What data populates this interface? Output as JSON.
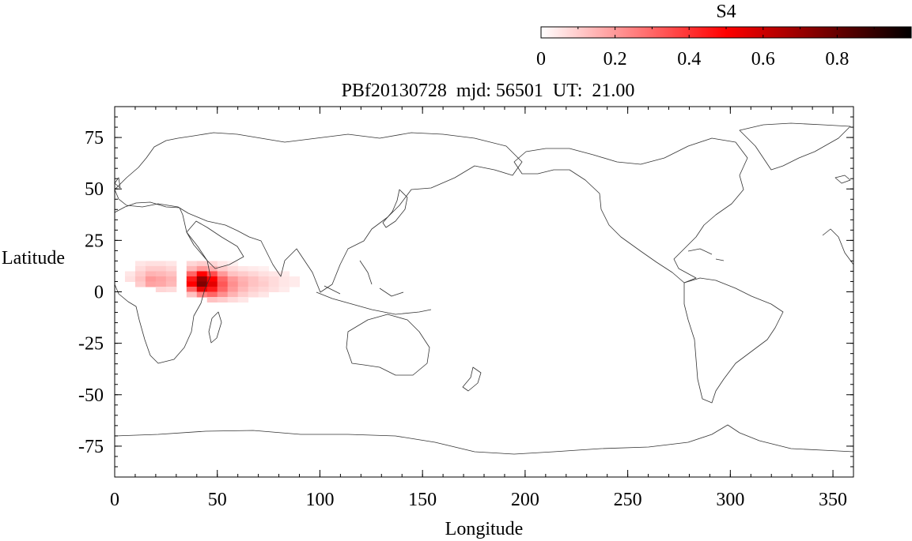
{
  "chart_data": {
    "type": "heatmap",
    "title": "PBf20130728  mjd: 56501  UT:  21.00",
    "xlabel": "Longitude",
    "ylabel": "Latitude",
    "xlim": [
      0,
      360
    ],
    "ylim": [
      -90,
      90
    ],
    "x_ticks": [
      "0",
      "50",
      "100",
      "150",
      "200",
      "250",
      "300",
      "350"
    ],
    "y_ticks": [
      "75",
      "50",
      "25",
      "0",
      "-25",
      "-50",
      "-75"
    ],
    "colorbar": {
      "label": "S4",
      "range": [
        0,
        1
      ],
      "ticks": [
        "0",
        "0.2",
        "0.4",
        "0.6",
        "0.8"
      ],
      "colors": [
        "#ffffff",
        "#ff0000",
        "#000000"
      ]
    },
    "cell_size_deg": {
      "lon": 5,
      "lat": 2.5
    },
    "cells": [
      {
        "lon": 10,
        "lat": 12.5,
        "s4": 0.05
      },
      {
        "lon": 15,
        "lat": 12.5,
        "s4": 0.06
      },
      {
        "lon": 20,
        "lat": 12.5,
        "s4": 0.06
      },
      {
        "lon": 25,
        "lat": 12.5,
        "s4": 0.05
      },
      {
        "lon": 35,
        "lat": 12.5,
        "s4": 0.08
      },
      {
        "lon": 40,
        "lat": 12.5,
        "s4": 0.1
      },
      {
        "lon": 45,
        "lat": 12.5,
        "s4": 0.08
      },
      {
        "lon": 50,
        "lat": 12.5,
        "s4": 0.05
      },
      {
        "lon": 55,
        "lat": 12.5,
        "s4": 0.03
      },
      {
        "lon": 10,
        "lat": 10,
        "s4": 0.07
      },
      {
        "lon": 15,
        "lat": 10,
        "s4": 0.1
      },
      {
        "lon": 20,
        "lat": 10,
        "s4": 0.1
      },
      {
        "lon": 25,
        "lat": 10,
        "s4": 0.08
      },
      {
        "lon": 35,
        "lat": 10,
        "s4": 0.14
      },
      {
        "lon": 40,
        "lat": 10,
        "s4": 0.2
      },
      {
        "lon": 45,
        "lat": 10,
        "s4": 0.16
      },
      {
        "lon": 50,
        "lat": 10,
        "s4": 0.1
      },
      {
        "lon": 55,
        "lat": 10,
        "s4": 0.07
      },
      {
        "lon": 60,
        "lat": 10,
        "s4": 0.05
      },
      {
        "lon": 65,
        "lat": 10,
        "s4": 0.04
      },
      {
        "lon": 70,
        "lat": 10,
        "s4": 0.03
      },
      {
        "lon": 5,
        "lat": 7.5,
        "s4": 0.05
      },
      {
        "lon": 10,
        "lat": 7.5,
        "s4": 0.1
      },
      {
        "lon": 15,
        "lat": 7.5,
        "s4": 0.15
      },
      {
        "lon": 20,
        "lat": 7.5,
        "s4": 0.14
      },
      {
        "lon": 25,
        "lat": 7.5,
        "s4": 0.12
      },
      {
        "lon": 35,
        "lat": 7.5,
        "s4": 0.3
      },
      {
        "lon": 40,
        "lat": 7.5,
        "s4": 0.5
      },
      {
        "lon": 45,
        "lat": 7.5,
        "s4": 0.35
      },
      {
        "lon": 50,
        "lat": 7.5,
        "s4": 0.2
      },
      {
        "lon": 55,
        "lat": 7.5,
        "s4": 0.12
      },
      {
        "lon": 60,
        "lat": 7.5,
        "s4": 0.1
      },
      {
        "lon": 65,
        "lat": 7.5,
        "s4": 0.08
      },
      {
        "lon": 70,
        "lat": 7.5,
        "s4": 0.06
      },
      {
        "lon": 75,
        "lat": 7.5,
        "s4": 0.05
      },
      {
        "lon": 80,
        "lat": 7.5,
        "s4": 0.04
      },
      {
        "lon": 5,
        "lat": 5,
        "s4": 0.06
      },
      {
        "lon": 10,
        "lat": 5,
        "s4": 0.12
      },
      {
        "lon": 15,
        "lat": 5,
        "s4": 0.2
      },
      {
        "lon": 20,
        "lat": 5,
        "s4": 0.18
      },
      {
        "lon": 25,
        "lat": 5,
        "s4": 0.15
      },
      {
        "lon": 35,
        "lat": 5,
        "s4": 0.45
      },
      {
        "lon": 40,
        "lat": 5,
        "s4": 0.7
      },
      {
        "lon": 45,
        "lat": 5,
        "s4": 0.5
      },
      {
        "lon": 50,
        "lat": 5,
        "s4": 0.3
      },
      {
        "lon": 55,
        "lat": 5,
        "s4": 0.2
      },
      {
        "lon": 60,
        "lat": 5,
        "s4": 0.15
      },
      {
        "lon": 65,
        "lat": 5,
        "s4": 0.12
      },
      {
        "lon": 70,
        "lat": 5,
        "s4": 0.09
      },
      {
        "lon": 75,
        "lat": 5,
        "s4": 0.07
      },
      {
        "lon": 80,
        "lat": 5,
        "s4": 0.05
      },
      {
        "lon": 85,
        "lat": 5,
        "s4": 0.04
      },
      {
        "lon": 10,
        "lat": 2.5,
        "s4": 0.1
      },
      {
        "lon": 15,
        "lat": 2.5,
        "s4": 0.18
      },
      {
        "lon": 20,
        "lat": 2.5,
        "s4": 0.17
      },
      {
        "lon": 25,
        "lat": 2.5,
        "s4": 0.14
      },
      {
        "lon": 35,
        "lat": 2.5,
        "s4": 0.5
      },
      {
        "lon": 40,
        "lat": 2.5,
        "s4": 0.75
      },
      {
        "lon": 45,
        "lat": 2.5,
        "s4": 0.55
      },
      {
        "lon": 50,
        "lat": 2.5,
        "s4": 0.33
      },
      {
        "lon": 55,
        "lat": 2.5,
        "s4": 0.22
      },
      {
        "lon": 60,
        "lat": 2.5,
        "s4": 0.16
      },
      {
        "lon": 65,
        "lat": 2.5,
        "s4": 0.12
      },
      {
        "lon": 70,
        "lat": 2.5,
        "s4": 0.1
      },
      {
        "lon": 75,
        "lat": 2.5,
        "s4": 0.07
      },
      {
        "lon": 80,
        "lat": 2.5,
        "s4": 0.05
      },
      {
        "lon": 85,
        "lat": 2.5,
        "s4": 0.04
      },
      {
        "lon": 20,
        "lat": 0,
        "s4": 0.08
      },
      {
        "lon": 25,
        "lat": 0,
        "s4": 0.07
      },
      {
        "lon": 35,
        "lat": 0,
        "s4": 0.3
      },
      {
        "lon": 40,
        "lat": 0,
        "s4": 0.55
      },
      {
        "lon": 45,
        "lat": 0,
        "s4": 0.45
      },
      {
        "lon": 50,
        "lat": 0,
        "s4": 0.3
      },
      {
        "lon": 55,
        "lat": 0,
        "s4": 0.2
      },
      {
        "lon": 60,
        "lat": 0,
        "s4": 0.14
      },
      {
        "lon": 65,
        "lat": 0,
        "s4": 0.1
      },
      {
        "lon": 70,
        "lat": 0,
        "s4": 0.08
      },
      {
        "lon": 75,
        "lat": 0,
        "s4": 0.06
      },
      {
        "lon": 80,
        "lat": 0,
        "s4": 0.04
      },
      {
        "lon": 35,
        "lat": -2.5,
        "s4": 0.12
      },
      {
        "lon": 40,
        "lat": -2.5,
        "s4": 0.25
      },
      {
        "lon": 45,
        "lat": -2.5,
        "s4": 0.3
      },
      {
        "lon": 50,
        "lat": -2.5,
        "s4": 0.22
      },
      {
        "lon": 55,
        "lat": -2.5,
        "s4": 0.15
      },
      {
        "lon": 60,
        "lat": -2.5,
        "s4": 0.1
      },
      {
        "lon": 65,
        "lat": -2.5,
        "s4": 0.07
      },
      {
        "lon": 70,
        "lat": -2.5,
        "s4": 0.05
      },
      {
        "lon": 45,
        "lat": -5,
        "s4": 0.12
      },
      {
        "lon": 50,
        "lat": -5,
        "s4": 0.1
      },
      {
        "lon": 55,
        "lat": -5,
        "s4": 0.07
      },
      {
        "lon": 60,
        "lat": -5,
        "s4": 0.05
      }
    ]
  }
}
